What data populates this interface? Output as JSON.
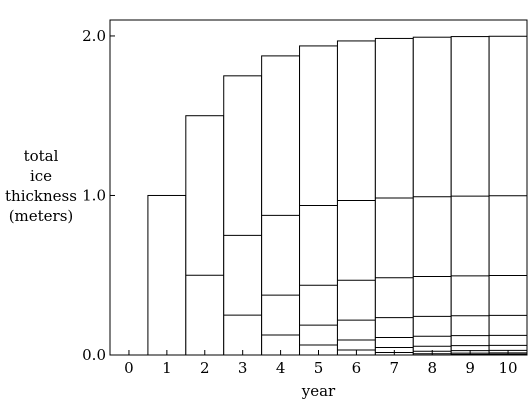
{
  "chart_data": {
    "type": "bar",
    "xlabel": "year",
    "ylabel_lines": [
      "total",
      "ice",
      "thickness",
      "(meters)"
    ],
    "x_ticks": [
      "0",
      "1",
      "2",
      "3",
      "4",
      "5",
      "6",
      "7",
      "8",
      "9",
      "10"
    ],
    "y_ticks": [
      "0.0",
      "1.0",
      "2.0"
    ],
    "y_tick_values": [
      0,
      1,
      2
    ],
    "ylim": [
      0,
      2.1
    ],
    "xlim": [
      -0.5,
      10.5
    ],
    "grid": false,
    "bar_color": "#ffffff",
    "edge_color": "#000000",
    "categories": [
      0,
      1,
      2,
      3,
      4,
      5,
      6,
      7,
      8,
      9,
      10
    ],
    "totals": [
      0,
      1.0,
      1.5,
      1.75,
      1.875,
      1.9375,
      1.96875,
      1.984375,
      1.9921875,
      1.99609375,
      1.998046875
    ],
    "layer_boundaries": [
      [],
      [],
      [
        0.5
      ],
      [
        0.25,
        0.75
      ],
      [
        0.125,
        0.375,
        0.875
      ],
      [
        0.0625,
        0.1875,
        0.4375,
        0.9375
      ],
      [
        0.03125,
        0.09375,
        0.21875,
        0.46875,
        0.96875
      ],
      [
        0.015625,
        0.046875,
        0.109375,
        0.234375,
        0.484375,
        0.984375
      ],
      [
        0.0078125,
        0.0234375,
        0.0546875,
        0.1171875,
        0.2421875,
        0.4921875,
        0.9921875
      ],
      [
        0.00390625,
        0.01171875,
        0.02734375,
        0.05859375,
        0.12109375,
        0.24609375,
        0.49609375,
        0.99609375
      ],
      [
        0.001953125,
        0.005859375,
        0.013671875,
        0.029296875,
        0.060546875,
        0.123046875,
        0.248046875,
        0.498046875,
        0.998046875
      ]
    ]
  }
}
